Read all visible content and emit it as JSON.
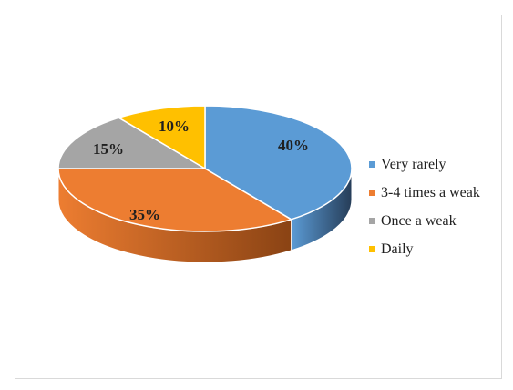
{
  "chart_data": {
    "type": "pie",
    "title": "",
    "slices": [
      {
        "label": "Very rarely",
        "value": 40,
        "display": "40%",
        "color": "#5B9BD5",
        "side": "#263D58"
      },
      {
        "label": "3-4 times a weak",
        "value": 35,
        "display": "35%",
        "color": "#ED7D31",
        "side": "#8A4314"
      },
      {
        "label": "Once a weak",
        "value": 15,
        "display": "15%",
        "color": "#A5A5A5",
        "side": "#5E5E5E"
      },
      {
        "label": "Daily",
        "value": 10,
        "display": "10%",
        "color": "#FFC000",
        "side": "#8F6C00"
      }
    ],
    "legend_position": "right",
    "style": "3d"
  }
}
